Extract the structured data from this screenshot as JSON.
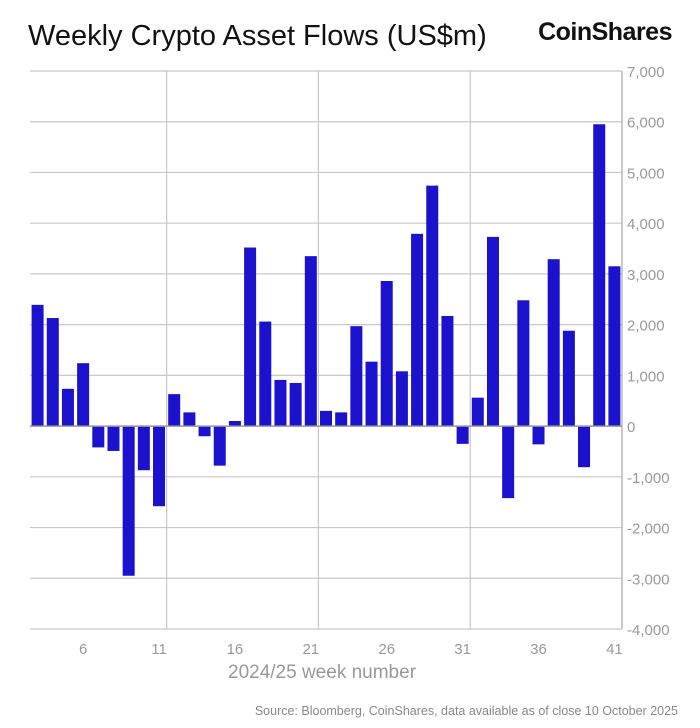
{
  "chart_data": {
    "type": "bar",
    "title": "Weekly Crypto Asset Flows (US$m)",
    "xlabel": "2024/25 week number",
    "ylabel": "",
    "source": "Source: Bloomberg, CoinShares, data available as of close 10 October 2025",
    "logo": "CoinShares",
    "color": "#1a12cc",
    "x": [
      3,
      4,
      5,
      6,
      7,
      8,
      9,
      10,
      11,
      12,
      13,
      14,
      15,
      16,
      17,
      18,
      19,
      20,
      21,
      22,
      23,
      24,
      25,
      26,
      27,
      28,
      29,
      30,
      31,
      32,
      33,
      34,
      35,
      36,
      37,
      38,
      39,
      40,
      41
    ],
    "values": [
      2390,
      2130,
      735,
      1240,
      -420,
      -490,
      -2950,
      -870,
      -1580,
      630,
      270,
      -200,
      -780,
      100,
      3520,
      2060,
      910,
      850,
      3350,
      300,
      270,
      1970,
      1270,
      2860,
      1080,
      3790,
      4740,
      2170,
      -350,
      560,
      3730,
      -1420,
      2480,
      -360,
      3290,
      1880,
      -810,
      5950,
      3150
    ],
    "x_ticks": [
      "6",
      "11",
      "16",
      "21",
      "26",
      "31",
      "36",
      "41"
    ],
    "y_ticks": [
      "7,000",
      "6,000",
      "5,000",
      "4,000",
      "3,000",
      "2,000",
      "1,000",
      "0",
      "-1,000",
      "-2,000",
      "-3,000",
      "-4,000"
    ],
    "ylim": [
      -4000,
      7000
    ],
    "xlim": [
      2.5,
      41.5
    ],
    "grid": true,
    "y_axis_side": "right"
  }
}
